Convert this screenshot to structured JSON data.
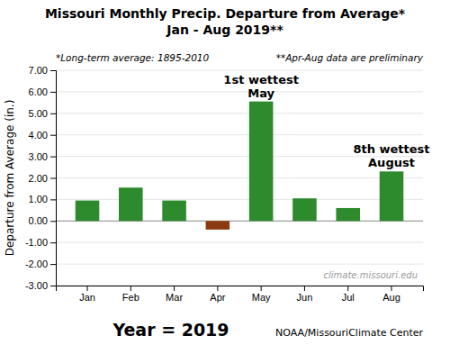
{
  "chart_data": {
    "type": "bar",
    "title": "Missouri Monthly Precip. Departure from Average*",
    "subtitle": "Jan - Aug 2019**",
    "notes": [
      "*Long-term average: 1895-2010",
      "**Apr-Aug data are preliminary"
    ],
    "ylabel": "Departure from Average (in.)",
    "categories": [
      "Jan",
      "Feb",
      "Mar",
      "Apr",
      "May",
      "Jun",
      "Jul",
      "Aug"
    ],
    "values": [
      0.95,
      1.55,
      0.95,
      -0.4,
      5.55,
      1.05,
      0.6,
      2.3
    ],
    "colors": [
      "#2d8a2d",
      "#2d8a2d",
      "#2d8a2d",
      "#8b3a0f",
      "#2d8a2d",
      "#2d8a2d",
      "#2d8a2d",
      "#2d8a2d"
    ],
    "ylim": [
      -3.0,
      7.0
    ],
    "yticks": [
      {
        "value": -3.0,
        "label": "-3.00"
      },
      {
        "value": -2.0,
        "label": "-2.00"
      },
      {
        "value": -1.0,
        "label": "-1.00"
      },
      {
        "value": 0.0,
        "label": "0.00"
      },
      {
        "value": 1.0,
        "label": "1.00"
      },
      {
        "value": 2.0,
        "label": "2.00"
      },
      {
        "value": 3.0,
        "label": "3.00"
      },
      {
        "value": 4.0,
        "label": "4.00"
      },
      {
        "value": 5.0,
        "label": "5.00"
      },
      {
        "value": 6.0,
        "label": "6.00"
      },
      {
        "value": 7.0,
        "label": "7.00"
      }
    ],
    "grid": true,
    "annotations": [
      {
        "category": "May",
        "text": [
          "1st wettest",
          "May"
        ]
      },
      {
        "category": "Aug",
        "text": [
          "8th wettest",
          "August"
        ]
      }
    ],
    "watermark": "climate.missouri.edu",
    "footer": [
      "Year = 2019",
      "NOAA/MissouriClimate Center"
    ]
  }
}
